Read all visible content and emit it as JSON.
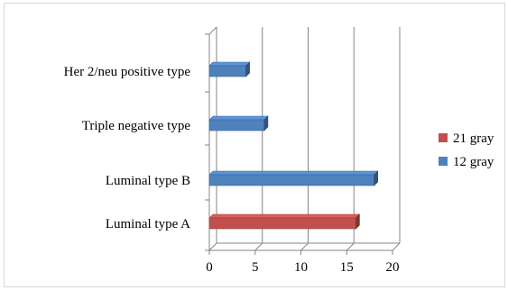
{
  "chart_data": {
    "type": "bar",
    "orientation": "horizontal",
    "style": "3d",
    "categories": [
      "Luminal type A",
      "Luminal type B",
      "Triple negative type",
      "Her 2/neu positive type"
    ],
    "series": [
      {
        "name": "12 gray",
        "color": "#4f81bd",
        "values": [
          0,
          18,
          6,
          4
        ]
      },
      {
        "name": "21 gray",
        "color": "#c0504d",
        "values": [
          16,
          0,
          0,
          0
        ]
      }
    ],
    "xlim": [
      0,
      20
    ],
    "x_ticks": [
      "0",
      "5",
      "10",
      "15",
      "20"
    ],
    "grid": true,
    "legend": {
      "position": "right",
      "entries": [
        {
          "name": "21 gray",
          "color": "#c0504d"
        },
        {
          "name": "12 gray",
          "color": "#4f81bd"
        }
      ]
    }
  }
}
